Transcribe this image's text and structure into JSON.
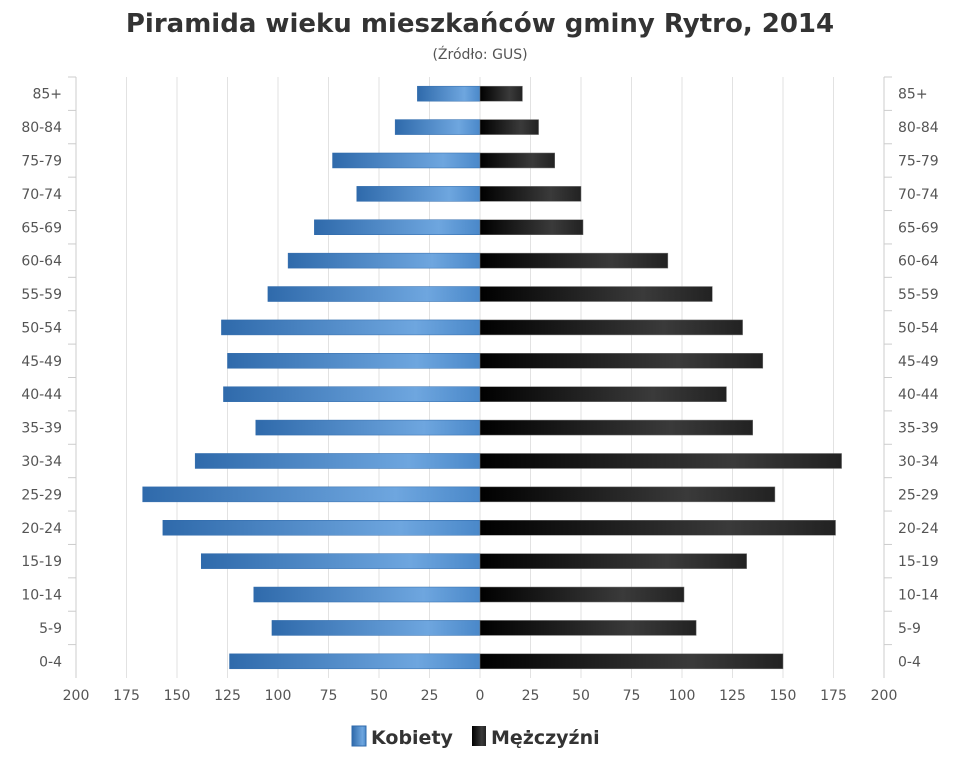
{
  "chart_data": {
    "type": "bar",
    "orientation": "horizontal-pyramid",
    "title": "Piramida wieku mieszkańców gminy Rytro, 2014",
    "subtitle": "(Źródło: GUS)",
    "categories": [
      "85+",
      "80-84",
      "75-79",
      "70-74",
      "65-69",
      "60-64",
      "55-59",
      "50-54",
      "45-49",
      "40-44",
      "35-39",
      "30-34",
      "25-29",
      "20-24",
      "15-19",
      "10-14",
      "5-9",
      "0-4"
    ],
    "series": [
      {
        "name": "Kobiety",
        "side": "left",
        "color": "#3d7fc4",
        "values": [
          31,
          42,
          73,
          61,
          82,
          95,
          105,
          128,
          125,
          127,
          111,
          141,
          167,
          157,
          138,
          112,
          103,
          124
        ]
      },
      {
        "name": "Mężczyźni",
        "side": "right",
        "color": "#1a1a1a",
        "values": [
          21,
          29,
          37,
          50,
          51,
          93,
          115,
          130,
          140,
          122,
          135,
          179,
          146,
          176,
          132,
          101,
          107,
          150
        ]
      }
    ],
    "xlim": [
      -200,
      200
    ],
    "x_ticks": [
      "200",
      "175",
      "150",
      "125",
      "100",
      "75",
      "50",
      "25",
      "0",
      "25",
      "50",
      "75",
      "100",
      "125",
      "150",
      "175",
      "200"
    ],
    "grid": true,
    "legend": "bottom-center"
  }
}
